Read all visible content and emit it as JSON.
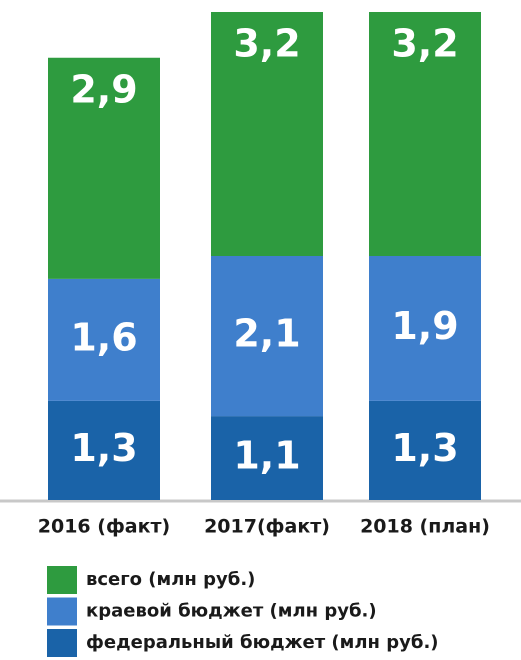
{
  "chart_data": {
    "type": "stacked_bar",
    "categories": [
      "2016 (факт)",
      "2017(факт)",
      "2018 (план)"
    ],
    "series": [
      {
        "name": "всего (млн руб.)",
        "color": "#2e9b3f",
        "values": [
          2.9,
          3.2,
          3.2
        ],
        "value_labels": [
          "2,9",
          "3,2",
          "3,2"
        ]
      },
      {
        "name": "краевой бюджет (млн руб.)",
        "color": "#3f7fcc",
        "values": [
          1.6,
          2.1,
          1.9
        ],
        "value_labels": [
          "1,6",
          "2,1",
          "1,9"
        ]
      },
      {
        "name": "федеральный бюджет (млн руб.)",
        "color": "#1a63a8",
        "values": [
          1.3,
          1.1,
          1.3
        ],
        "value_labels": [
          "1,3",
          "1,1",
          "1,3"
        ]
      }
    ],
    "ylim": [
      0,
      6.4
    ]
  }
}
